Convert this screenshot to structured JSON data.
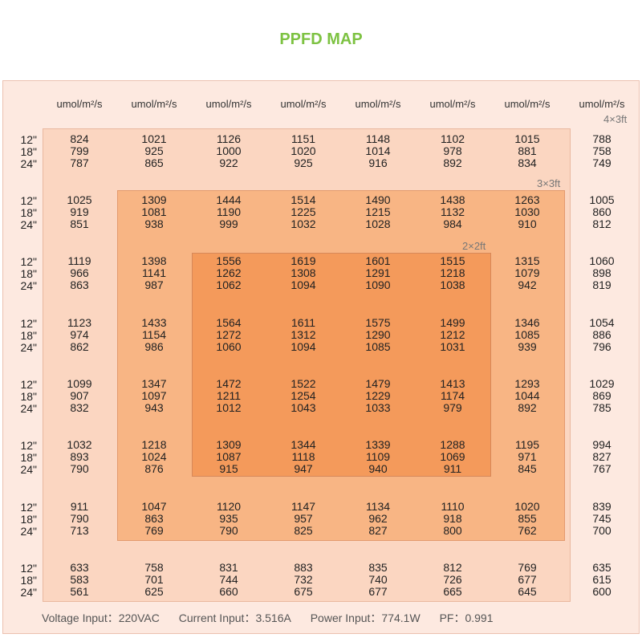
{
  "title": "PPFD MAP",
  "colors": {
    "title": "#7dc242",
    "outer": "#fde9e0",
    "zone_4x3": "#fbd6c1",
    "zone_3x3": "#f8b584",
    "zone_2x2": "#f49a5b"
  },
  "column_unit": "umol/m²/s",
  "height_labels": [
    "12\"",
    "18\"",
    "24\""
  ],
  "zone_labels": {
    "z4x3": "4×3ft",
    "z3x3": "3×3ft",
    "z2x2": "2×2ft"
  },
  "footer": {
    "voltage": "Voltage Input：220VAC",
    "current": "Current Input：3.516A",
    "power": "Power Input：774.1W",
    "pf": "PF：0.991"
  },
  "chart_data": {
    "type": "table",
    "title": "PPFD MAP",
    "unit": "umol/m²/s",
    "heights": [
      "12\"",
      "18\"",
      "24\""
    ],
    "grid": [
      [
        [
          824,
          799,
          787
        ],
        [
          1021,
          925,
          865
        ],
        [
          1126,
          1000,
          922
        ],
        [
          1151,
          1020,
          925
        ],
        [
          1148,
          1014,
          916
        ],
        [
          1102,
          978,
          892
        ],
        [
          1015,
          881,
          834
        ],
        [
          788,
          758,
          749
        ]
      ],
      [
        [
          1025,
          919,
          851
        ],
        [
          1309,
          1081,
          938
        ],
        [
          1444,
          1190,
          999
        ],
        [
          1514,
          1225,
          1032
        ],
        [
          1490,
          1215,
          1028
        ],
        [
          1438,
          1132,
          984
        ],
        [
          1263,
          1030,
          910
        ],
        [
          1005,
          860,
          812
        ]
      ],
      [
        [
          1119,
          966,
          863
        ],
        [
          1398,
          1141,
          987
        ],
        [
          1556,
          1262,
          1062
        ],
        [
          1619,
          1308,
          1094
        ],
        [
          1601,
          1291,
          1090
        ],
        [
          1515,
          1218,
          1038
        ],
        [
          1315,
          1079,
          942
        ],
        [
          1060,
          898,
          819
        ]
      ],
      [
        [
          1123,
          974,
          862
        ],
        [
          1433,
          1154,
          986
        ],
        [
          1564,
          1272,
          1060
        ],
        [
          1611,
          1312,
          1094
        ],
        [
          1575,
          1290,
          1085
        ],
        [
          1499,
          1212,
          1031
        ],
        [
          1346,
          1085,
          939
        ],
        [
          1054,
          886,
          796
        ]
      ],
      [
        [
          1099,
          907,
          832
        ],
        [
          1347,
          1097,
          943
        ],
        [
          1472,
          1211,
          1012
        ],
        [
          1522,
          1254,
          1043
        ],
        [
          1479,
          1229,
          1033
        ],
        [
          1413,
          1174,
          979
        ],
        [
          1293,
          1044,
          892
        ],
        [
          1029,
          869,
          785
        ]
      ],
      [
        [
          1032,
          893,
          790
        ],
        [
          1218,
          1024,
          876
        ],
        [
          1309,
          1087,
          915
        ],
        [
          1344,
          1118,
          947
        ],
        [
          1339,
          1109,
          940
        ],
        [
          1288,
          1069,
          911
        ],
        [
          1195,
          971,
          845
        ],
        [
          994,
          827,
          767
        ]
      ],
      [
        [
          911,
          790,
          713
        ],
        [
          1047,
          863,
          769
        ],
        [
          1120,
          935,
          790
        ],
        [
          1147,
          957,
          825
        ],
        [
          1134,
          962,
          827
        ],
        [
          1110,
          918,
          800
        ],
        [
          1020,
          855,
          762
        ],
        [
          839,
          745,
          700
        ]
      ],
      [
        [
          633,
          583,
          561
        ],
        [
          758,
          701,
          625
        ],
        [
          831,
          744,
          660
        ],
        [
          883,
          732,
          675
        ],
        [
          835,
          740,
          677
        ],
        [
          812,
          726,
          665
        ],
        [
          769,
          677,
          645
        ],
        [
          635,
          615,
          600
        ]
      ]
    ]
  }
}
